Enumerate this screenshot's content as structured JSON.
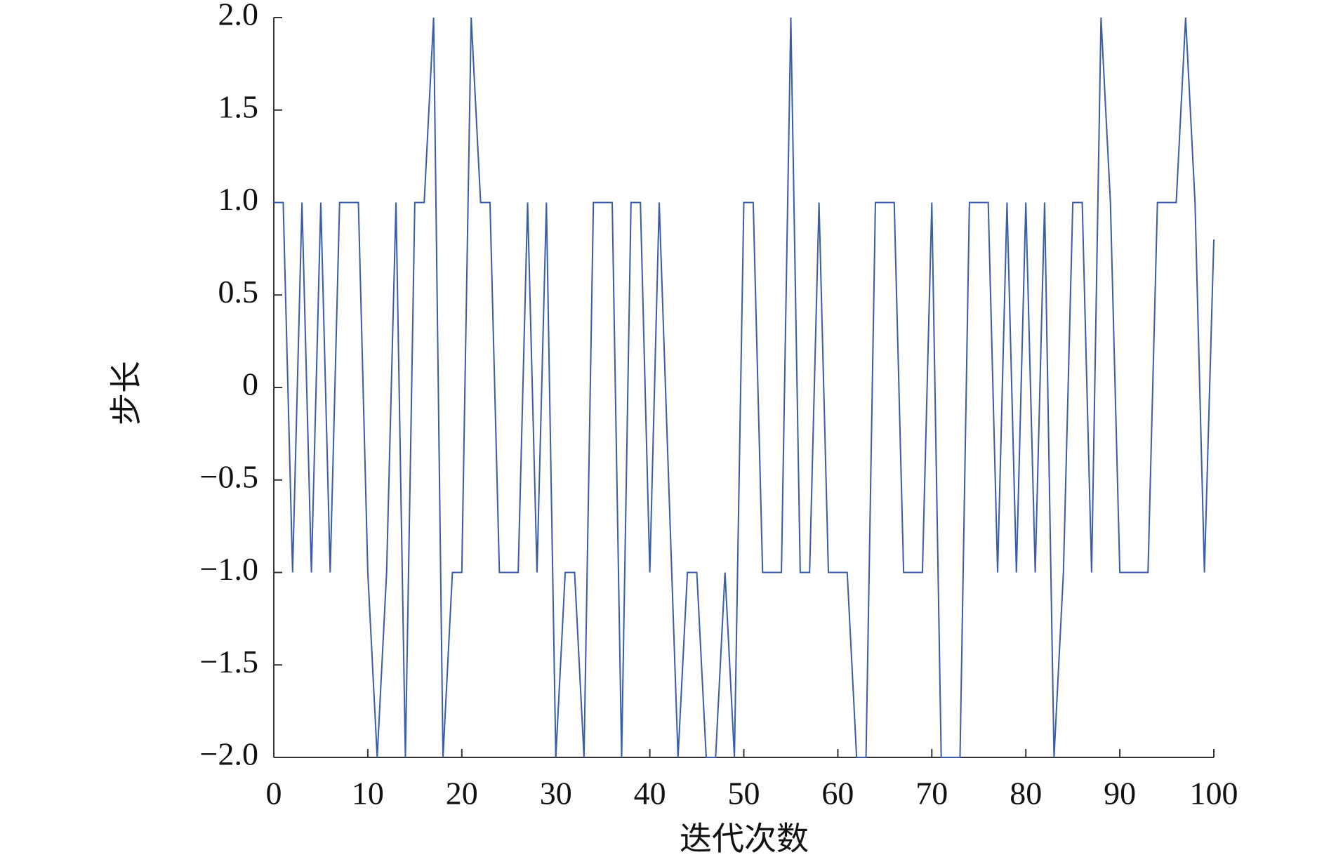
{
  "chart_data": {
    "type": "line",
    "xlabel": "迭代次数",
    "ylabel": "步长",
    "x": [
      0,
      1,
      2,
      3,
      4,
      5,
      6,
      7,
      8,
      9,
      10,
      11,
      12,
      13,
      14,
      15,
      16,
      17,
      18,
      19,
      20,
      21,
      22,
      23,
      24,
      25,
      26,
      27,
      28,
      29,
      30,
      31,
      32,
      33,
      34,
      35,
      36,
      37,
      38,
      39,
      40,
      41,
      42,
      43,
      44,
      45,
      46,
      47,
      48,
      49,
      50,
      51,
      52,
      53,
      54,
      55,
      56,
      57,
      58,
      59,
      60,
      61,
      62,
      63,
      64,
      65,
      66,
      67,
      68,
      69,
      70,
      71,
      72,
      73,
      74,
      75,
      76,
      77,
      78,
      79,
      80,
      81,
      82,
      83,
      84,
      85,
      86,
      87,
      88,
      89,
      90,
      91,
      92,
      93,
      94,
      95,
      96,
      97,
      98,
      99,
      100
    ],
    "values": [
      1,
      1,
      -1,
      1,
      -1,
      1,
      -1,
      1,
      1,
      1,
      -1,
      -2,
      -1,
      1,
      -2,
      1,
      1,
      2,
      -2,
      -1,
      -1,
      2,
      1,
      1,
      -1,
      -1,
      -1,
      1,
      -1,
      1,
      -2,
      -1,
      -1,
      -2,
      1,
      1,
      1,
      -2,
      1,
      1,
      -1,
      1,
      -0.5,
      -2,
      -1,
      -1,
      -2,
      -2,
      -1,
      -2,
      1,
      1,
      -1,
      -1,
      -1,
      2,
      -1,
      -1,
      1,
      -1,
      -1,
      -1,
      -2,
      -2,
      1,
      1,
      1,
      -1,
      -1,
      -1,
      1,
      -2,
      -2,
      -2,
      1,
      1,
      1,
      -1,
      1,
      -1,
      1,
      -1,
      1,
      -2,
      -1,
      1,
      1,
      -1,
      2,
      1,
      -1,
      -1,
      -1,
      -1,
      1,
      1,
      1,
      2,
      1,
      -1,
      0.8
    ],
    "color": "#3b5ca8",
    "xlim": [
      0,
      100
    ],
    "xticks": [
      0,
      10,
      20,
      30,
      40,
      50,
      60,
      70,
      80,
      90,
      100
    ],
    "ylim": [
      -2,
      2
    ],
    "yticks": [
      {
        "value": -2,
        "label": "−2.0"
      },
      {
        "value": -1.5,
        "label": "−1.5"
      },
      {
        "value": -1,
        "label": "−1.0"
      },
      {
        "value": -0.5,
        "label": "−0.5"
      },
      0,
      0.5,
      {
        "value": 1,
        "label": "1.0"
      },
      1.5,
      {
        "value": 2,
        "label": "2.0"
      }
    ],
    "grid": false
  }
}
